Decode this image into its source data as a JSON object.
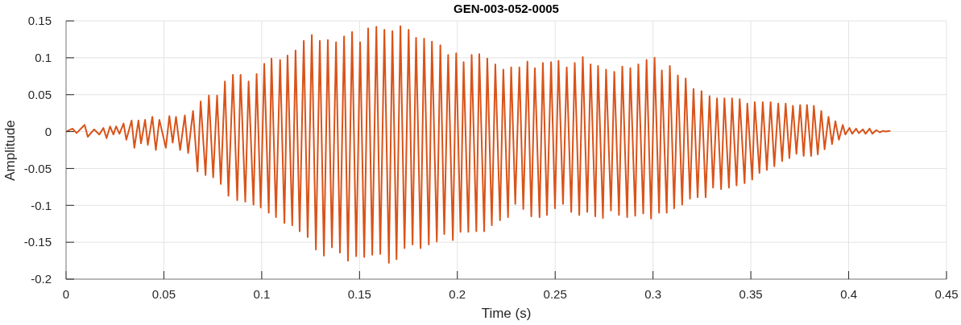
{
  "chart_data": {
    "type": "line",
    "title": "GEN-003-052-0005",
    "xlabel": "Time (s)",
    "ylabel": "Amplitude",
    "x": [
      0,
      0.0033,
      0.0054,
      0.0095,
      0.0111,
      0.0143,
      0.017,
      0.0191,
      0.0207,
      0.0225,
      0.0242,
      0.0256,
      0.0273,
      0.0294,
      0.0308,
      0.0335,
      0.0349,
      0.037,
      0.0383,
      0.0404,
      0.0418,
      0.0441,
      0.0459,
      0.0477,
      0.051,
      0.0528,
      0.0545,
      0.0562,
      0.0583,
      0.0607,
      0.0624,
      0.0649,
      0.0672,
      0.0688,
      0.0713,
      0.073,
      0.0752,
      0.0772,
      0.0791,
      0.0812,
      0.083,
      0.0853,
      0.0875,
      0.0892,
      0.0916,
      0.0933,
      0.0958,
      0.0974,
      0.0995,
      0.1013,
      0.1036,
      0.105,
      0.1073,
      0.1094,
      0.1116,
      0.1132,
      0.1156,
      0.1173,
      0.1194,
      0.1215,
      0.1235,
      0.1256,
      0.1277,
      0.1297,
      0.1318,
      0.1338,
      0.1359,
      0.138,
      0.14,
      0.1421,
      0.1441,
      0.1462,
      0.1483,
      0.1503,
      0.1524,
      0.1544,
      0.1565,
      0.1586,
      0.1606,
      0.1627,
      0.165,
      0.1668,
      0.1689,
      0.1709,
      0.173,
      0.1751,
      0.1771,
      0.1789,
      0.1812,
      0.183,
      0.1854,
      0.187,
      0.1895,
      0.1913,
      0.1933,
      0.1953,
      0.1977,
      0.1994,
      0.2016,
      0.2032,
      0.2056,
      0.2073,
      0.2097,
      0.2112,
      0.2137,
      0.2153,
      0.2176,
      0.2194,
      0.2218,
      0.2235,
      0.2259,
      0.2275,
      0.2296,
      0.2317,
      0.2337,
      0.2358,
      0.2378,
      0.2396,
      0.242,
      0.2437,
      0.2458,
      0.2479,
      0.2499,
      0.2517,
      0.254,
      0.2559,
      0.2582,
      0.26,
      0.2623,
      0.2641,
      0.2664,
      0.2681,
      0.2705,
      0.2719,
      0.2744,
      0.276,
      0.2785,
      0.2802,
      0.2826,
      0.2843,
      0.2868,
      0.2884,
      0.2909,
      0.2925,
      0.295,
      0.2967,
      0.299,
      0.3008,
      0.3031,
      0.3045,
      0.307,
      0.3086,
      0.3108,
      0.3127,
      0.3149,
      0.3167,
      0.3189,
      0.3207,
      0.3228,
      0.3248,
      0.3269,
      0.3289,
      0.3307,
      0.3327,
      0.3348,
      0.3365,
      0.3388,
      0.3404,
      0.3427,
      0.3443,
      0.3468,
      0.3482,
      0.3507,
      0.352,
      0.3544,
      0.3561,
      0.3582,
      0.3601,
      0.362,
      0.364,
      0.366,
      0.3678,
      0.3697,
      0.3715,
      0.3733,
      0.3752,
      0.377,
      0.3787,
      0.3808,
      0.3822,
      0.3842,
      0.386,
      0.3877,
      0.3897,
      0.3915,
      0.3932,
      0.395,
      0.397,
      0.3983,
      0.4004,
      0.4018,
      0.4038,
      0.4052,
      0.4073,
      0.4086,
      0.4107,
      0.4121,
      0.4141,
      0.4159,
      0.4176,
      0.4189,
      0.421
    ],
    "values": [
      0,
      0.004,
      -0.002,
      0.009,
      -0.007,
      0.003,
      -0.004,
      0.005,
      -0.009,
      0.007,
      -0.004,
      0.007,
      -0.003,
      0.011,
      -0.011,
      0.015,
      -0.022,
      0.015,
      -0.016,
      0.016,
      -0.018,
      0.02,
      -0.025,
      0.016,
      -0.022,
      0.021,
      -0.015,
      0.02,
      -0.025,
      0.022,
      -0.029,
      0.028,
      -0.054,
      0.041,
      -0.059,
      0.049,
      -0.062,
      0.049,
      -0.071,
      0.068,
      -0.087,
      0.077,
      -0.093,
      0.077,
      -0.095,
      0.068,
      -0.099,
      0.078,
      -0.103,
      0.092,
      -0.11,
      0.099,
      -0.116,
      0.097,
      -0.124,
      0.103,
      -0.127,
      0.11,
      -0.135,
      0.123,
      -0.143,
      0.131,
      -0.16,
      0.123,
      -0.168,
      0.124,
      -0.157,
      0.121,
      -0.164,
      0.129,
      -0.175,
      0.135,
      -0.169,
      0.121,
      -0.17,
      0.14,
      -0.167,
      0.142,
      -0.166,
      0.138,
      -0.178,
      0.136,
      -0.173,
      0.143,
      -0.158,
      0.138,
      -0.153,
      0.127,
      -0.158,
      0.126,
      -0.153,
      0.122,
      -0.149,
      0.117,
      -0.139,
      0.104,
      -0.147,
      0.106,
      -0.136,
      0.094,
      -0.136,
      0.104,
      -0.135,
      0.105,
      -0.135,
      0.099,
      -0.127,
      0.091,
      -0.12,
      0.084,
      -0.116,
      0.087,
      -0.098,
      0.087,
      -0.105,
      0.095,
      -0.115,
      0.086,
      -0.116,
      0.093,
      -0.113,
      0.094,
      -0.104,
      0.096,
      -0.098,
      0.087,
      -0.109,
      0.093,
      -0.113,
      0.101,
      -0.109,
      0.091,
      -0.115,
      0.089,
      -0.117,
      0.084,
      -0.107,
      0.081,
      -0.113,
      0.088,
      -0.116,
      0.086,
      -0.114,
      0.091,
      -0.111,
      0.097,
      -0.118,
      0.1,
      -0.11,
      0.083,
      -0.11,
      0.089,
      -0.104,
      0.076,
      -0.099,
      0.072,
      -0.091,
      0.058,
      -0.089,
      0.055,
      -0.089,
      0.048,
      -0.076,
      0.045,
      -0.078,
      0.045,
      -0.076,
      0.045,
      -0.073,
      0.044,
      -0.07,
      0.038,
      -0.065,
      0.04,
      -0.056,
      0.04,
      -0.052,
      0.04,
      -0.047,
      0.038,
      -0.04,
      0.038,
      -0.036,
      0.035,
      -0.03,
      0.036,
      -0.033,
      0.036,
      -0.033,
      0.035,
      -0.031,
      0.028,
      -0.024,
      0.02,
      -0.017,
      0.014,
      -0.011,
      0.009,
      -0.004,
      0.005,
      -0.003,
      0.004,
      -0.002,
      0.003,
      -0.003,
      0.004,
      -0.003,
      0.002,
      -0.001,
      0.001,
      0,
      0.001
    ],
    "color": "#d95319",
    "line_style": "solid",
    "xlim": [
      0,
      0.45
    ],
    "xticks": [
      0,
      0.05,
      0.1,
      0.15,
      0.2,
      0.25,
      0.3,
      0.35,
      0.4,
      0.45
    ],
    "ylim": [
      -0.2,
      0.15
    ],
    "yticks": [
      -0.2,
      -0.15,
      -0.1,
      -0.05,
      0,
      0.05,
      0.1,
      0.15
    ],
    "grid": true
  }
}
